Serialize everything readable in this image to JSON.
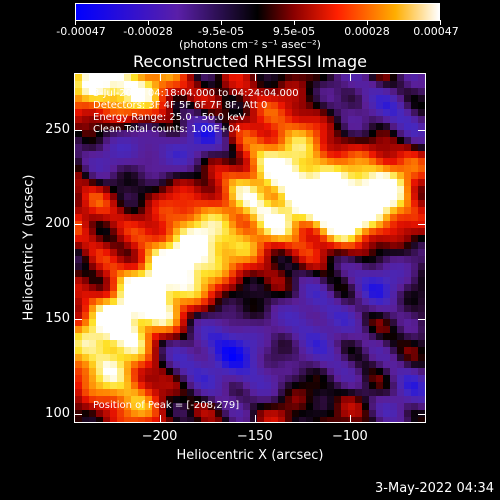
{
  "colorbar": {
    "labels": [
      "-0.00047",
      "-0.00028",
      "-9.5e-05",
      "9.5e-05",
      "0.00028",
      "0.00047"
    ],
    "units": "(photons cm⁻² s⁻¹ asec⁻²)",
    "colors": [
      "#0000ff",
      "#5a1fa8",
      "#000000",
      "#8a0000",
      "#ff2000",
      "#ffae00",
      "#ffffff"
    ]
  },
  "plot": {
    "title": "Reconstructed RHESSI Image",
    "annotations": [
      "3-Jul-2003 04:18:04.000 to 04:24:04.000",
      "Detectors: 3F 4F 5F 6F 7F 8F, Att 0",
      "Energy Range: 25.0 - 50.0 keV",
      "Clean    Total counts: 1.00E+04"
    ],
    "peak_text": "Position of Peak = [-208,279]",
    "footer": "3-May-2022 04:34"
  },
  "chart_data": {
    "type": "heatmap",
    "title": "Reconstructed RHESSI Image",
    "xlabel": "Heliocentric X (arcsec)",
    "ylabel": "Heliocentric Y (arcsec)",
    "xlim": [
      -245,
      -60
    ],
    "ylim": [
      95,
      280
    ],
    "xticks": [
      -200,
      -150,
      -100
    ],
    "yticks": [
      100,
      150,
      200,
      250
    ],
    "colorbar_range": [
      -0.00047,
      0.00047
    ],
    "peak_position": [
      -208,
      279
    ],
    "hot_spots": [
      {
        "x": -235,
        "y": 275,
        "v": 1.0
      },
      {
        "x": -207,
        "y": 272,
        "v": 0.85
      },
      {
        "x": -100,
        "y": 205,
        "v": 1.0
      },
      {
        "x": -80,
        "y": 218,
        "v": 0.9
      },
      {
        "x": -120,
        "y": 215,
        "v": 0.75
      },
      {
        "x": -145,
        "y": 200,
        "v": 0.7
      },
      {
        "x": -175,
        "y": 185,
        "v": 0.85
      },
      {
        "x": -195,
        "y": 175,
        "v": 0.65
      },
      {
        "x": -205,
        "y": 160,
        "v": 0.8
      },
      {
        "x": -220,
        "y": 150,
        "v": 0.75
      },
      {
        "x": -240,
        "y": 135,
        "v": 0.6
      },
      {
        "x": -225,
        "y": 120,
        "v": 0.5
      },
      {
        "x": -210,
        "y": 105,
        "v": 0.55
      },
      {
        "x": -238,
        "y": 205,
        "v": 0.45
      },
      {
        "x": -140,
        "y": 245,
        "v": 0.35
      },
      {
        "x": -160,
        "y": 265,
        "v": 0.3
      },
      {
        "x": -115,
        "y": 260,
        "v": 0.45
      },
      {
        "x": -130,
        "y": 230,
        "v": 0.55
      },
      {
        "x": -160,
        "y": 225,
        "v": 0.5
      },
      {
        "x": -190,
        "y": 205,
        "v": 0.4
      },
      {
        "x": -80,
        "y": 240,
        "v": 0.3
      },
      {
        "x": -100,
        "y": 115,
        "v": 0.3
      },
      {
        "x": -140,
        "y": 100,
        "v": 0.25
      }
    ],
    "cold_spots": [
      {
        "x": -175,
        "y": 245,
        "v": -0.7
      },
      {
        "x": -105,
        "y": 265,
        "v": -0.6
      },
      {
        "x": -75,
        "y": 255,
        "v": -0.6
      },
      {
        "x": -165,
        "y": 135,
        "v": -0.7
      },
      {
        "x": -120,
        "y": 150,
        "v": -0.55
      },
      {
        "x": -85,
        "y": 170,
        "v": -0.6
      },
      {
        "x": -105,
        "y": 125,
        "v": -0.5
      },
      {
        "x": -150,
        "y": 115,
        "v": -0.45
      },
      {
        "x": -190,
        "y": 125,
        "v": -0.4
      },
      {
        "x": -70,
        "y": 110,
        "v": -0.5
      },
      {
        "x": -200,
        "y": 240,
        "v": -0.35
      },
      {
        "x": -225,
        "y": 240,
        "v": -0.45
      }
    ]
  }
}
